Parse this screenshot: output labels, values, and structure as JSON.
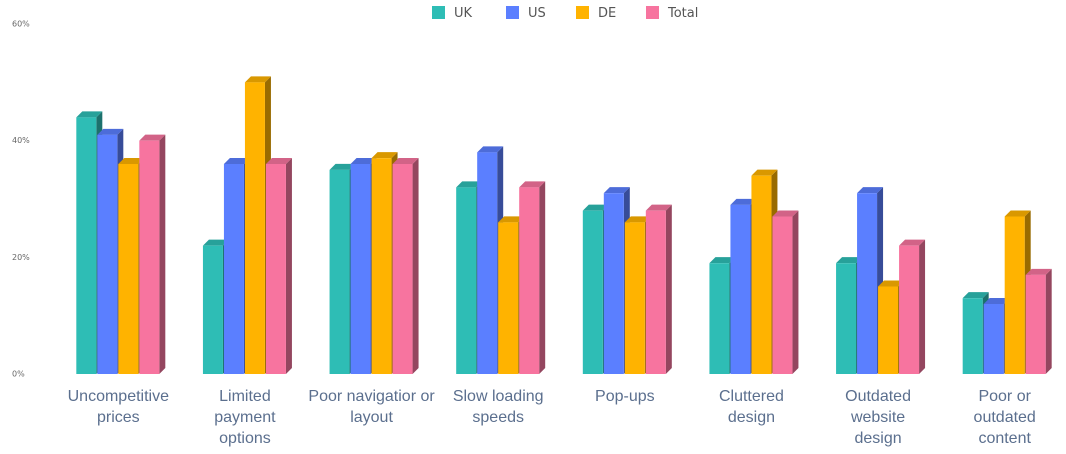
{
  "chart_data": {
    "type": "bar",
    "categories": [
      "Uncompetitive prices",
      "Limited payment options",
      "Poor navigatior or layout",
      "Slow loading speeds",
      "Pop-ups",
      "Cluttered design",
      "Outdated website design",
      "Poor or outdated content"
    ],
    "series": [
      {
        "name": "UK",
        "color": "#2ebdb5",
        "values": [
          44,
          22,
          35,
          32,
          28,
          19,
          19,
          13
        ]
      },
      {
        "name": "US",
        "color": "#5b7fff",
        "values": [
          41,
          36,
          36,
          38,
          31,
          29,
          31,
          12
        ]
      },
      {
        "name": "DE",
        "color": "#ffb300",
        "values": [
          36,
          50,
          37,
          26,
          26,
          34,
          15,
          27
        ]
      },
      {
        "name": "Total",
        "color": "#f7749f",
        "values": [
          40,
          36,
          36,
          32,
          28,
          27,
          22,
          17
        ]
      }
    ],
    "ylim": [
      0,
      60
    ],
    "yticks": [
      {
        "value": 0,
        "label": "0%"
      },
      {
        "value": 20,
        "label": "20%"
      },
      {
        "value": 40,
        "label": "40%"
      },
      {
        "value": 60,
        "label": "60%"
      }
    ],
    "legend": "top"
  }
}
